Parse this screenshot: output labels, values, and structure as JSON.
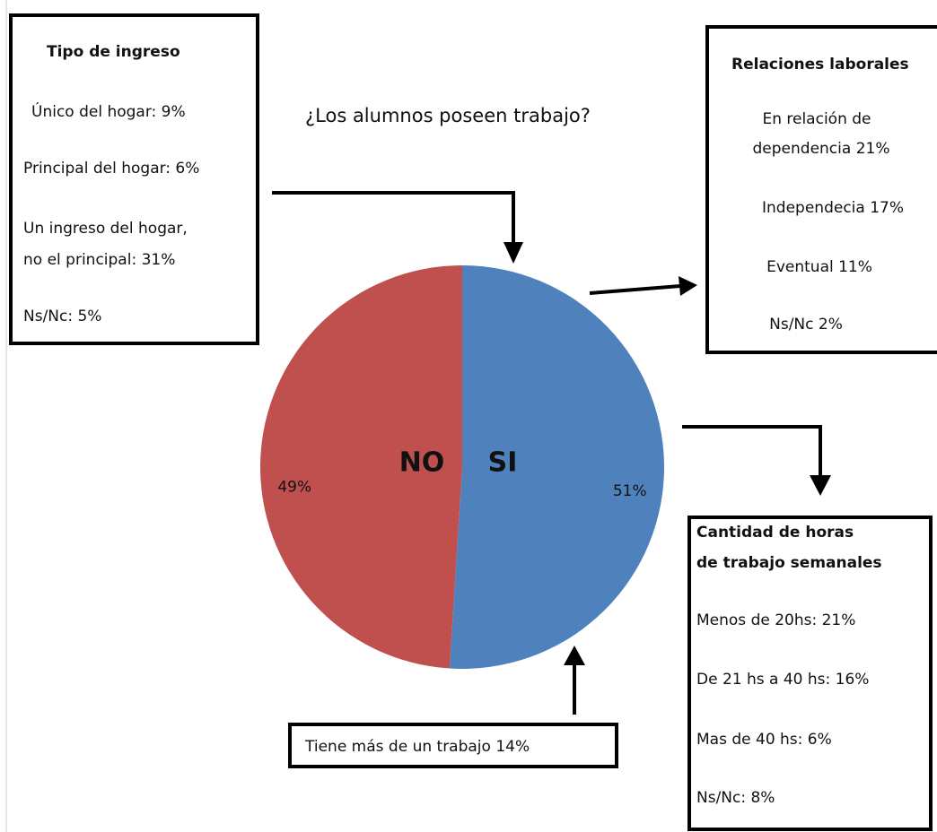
{
  "chart_data": {
    "type": "pie",
    "title": "¿Los alumnos poseen trabajo?",
    "categories": [
      "SI",
      "NO"
    ],
    "values": [
      51,
      49
    ],
    "value_labels": [
      "51%",
      "49%"
    ],
    "colors": [
      "#4f81bd",
      "#c0504d"
    ]
  },
  "annotations": {
    "tipo_ingreso": {
      "title": "Tipo de ingreso",
      "lines": [
        "Único del hogar: 9%",
        "Principal del hogar: 6%",
        "Un ingreso del hogar,",
        "no el principal:  31%",
        "Ns/Nc: 5%"
      ]
    },
    "relaciones": {
      "title": "Relaciones laborales",
      "lines": [
        "En relación de",
        "dependencia  21%",
        "Independecia  17%",
        "Eventual   11%",
        "Ns/Nc  2%"
      ]
    },
    "horas": {
      "title_lines": [
        "Cantidad de horas",
        "de trabajo semanales"
      ],
      "lines": [
        "Menos de 20hs: 21%",
        "De 21 hs a 40 hs: 16%",
        "Mas de 40 hs:  6%",
        "Ns/Nc: 8%"
      ]
    },
    "mas_trabajo": "Tiene más de un trabajo 14%"
  }
}
